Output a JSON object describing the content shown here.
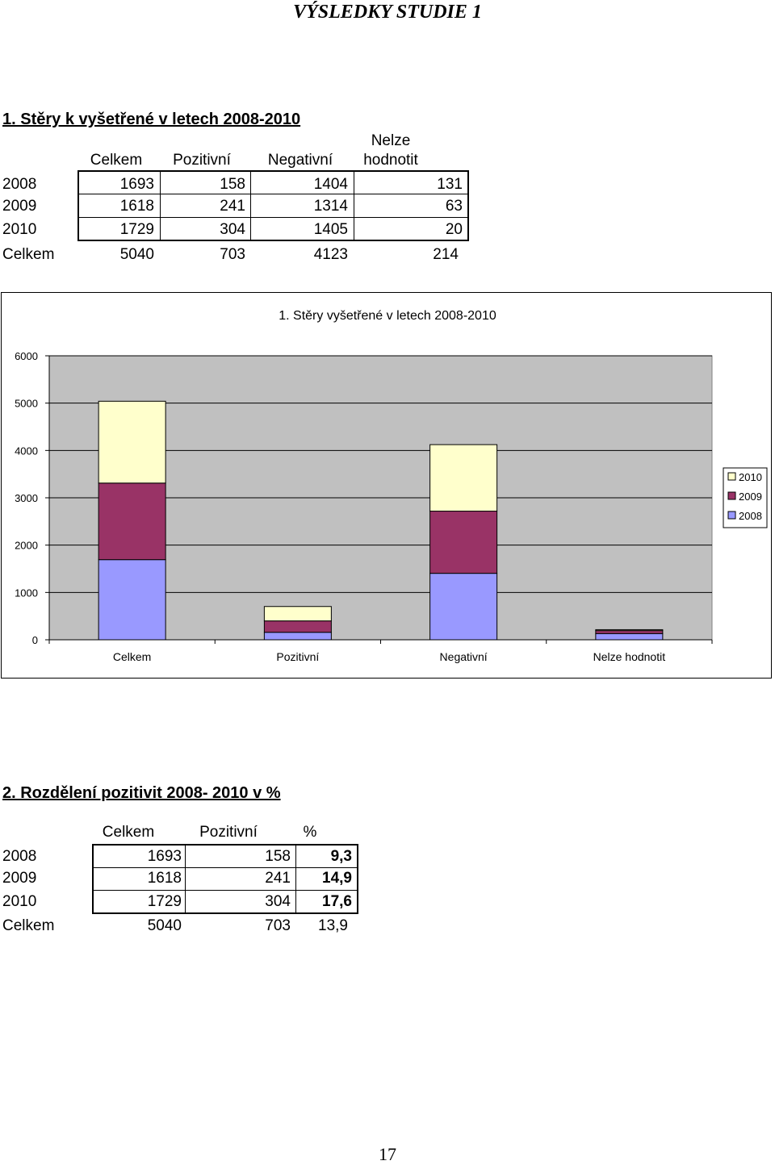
{
  "page_title": "VÝSLEDKY STUDIE 1",
  "section1": {
    "heading": "1. Stěry k vyšetřené v letech 2008-2010",
    "col_headers": [
      "Celkem",
      "Pozitivní",
      "Negativní",
      "Nelze hodnotit"
    ],
    "col_header_nelze_line1": "Nelze",
    "col_header_nelze_line2": "hodnotit",
    "rows": [
      {
        "label": "2008",
        "values": [
          "1693",
          "158",
          "1404",
          "131"
        ]
      },
      {
        "label": "2009",
        "values": [
          "1618",
          "241",
          "1314",
          "63"
        ]
      },
      {
        "label": "2010",
        "values": [
          "1729",
          "304",
          "1405",
          "20"
        ]
      },
      {
        "label": "Celkem",
        "values": [
          "5040",
          "703",
          "4123",
          "214"
        ]
      }
    ]
  },
  "chart_data": {
    "type": "bar",
    "stacked": true,
    "title": "1. Stěry vyšetřené v letech 2008-2010",
    "categories": [
      "Celkem",
      "Pozitivní",
      "Negativní",
      "Nelze hodnotit"
    ],
    "series": [
      {
        "name": "2008",
        "values": [
          1693,
          158,
          1404,
          131
        ],
        "color": "#9999ff"
      },
      {
        "name": "2009",
        "values": [
          1618,
          241,
          1314,
          63
        ],
        "color": "#993366"
      },
      {
        "name": "2010",
        "values": [
          1729,
          304,
          1405,
          20
        ],
        "color": "#ffffcc"
      }
    ],
    "legend_order": [
      "2010",
      "2009",
      "2008"
    ],
    "legend_position": "right",
    "ylim": [
      0,
      6000
    ],
    "yticks": [
      "0",
      "1000",
      "2000",
      "3000",
      "4000",
      "5000",
      "6000"
    ],
    "plot_background": "#c0c0c0",
    "grid": true
  },
  "section2": {
    "heading": "2. Rozdělení pozitivit 2008- 2010 v %",
    "col_headers": [
      "Celkem",
      "Pozitivní",
      "%"
    ],
    "rows": [
      {
        "label": "2008",
        "values": [
          "1693",
          "158",
          "9,3"
        ]
      },
      {
        "label": "2009",
        "values": [
          "1618",
          "241",
          "14,9"
        ]
      },
      {
        "label": "2010",
        "values": [
          "1729",
          "304",
          "17,6"
        ]
      },
      {
        "label": "Celkem",
        "values": [
          "5040",
          "703",
          "13,9"
        ]
      }
    ]
  },
  "page_number": "17"
}
